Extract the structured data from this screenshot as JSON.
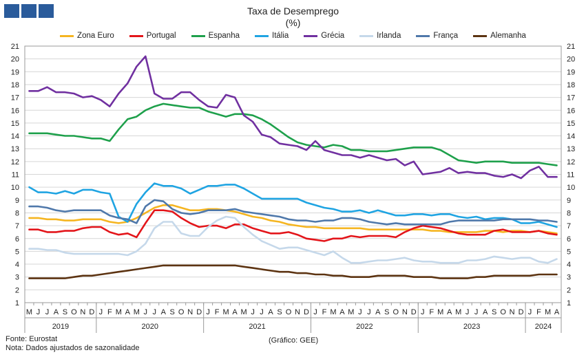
{
  "chart_data": {
    "type": "line",
    "title": "Taxa de Desemprego",
    "subtitle": "(%)",
    "ylim": [
      1,
      21
    ],
    "yticks": [
      1,
      2,
      3,
      4,
      5,
      6,
      7,
      8,
      9,
      10,
      11,
      12,
      13,
      14,
      15,
      16,
      17,
      18,
      19,
      20,
      21
    ],
    "month_labels": [
      "M",
      "J",
      "J",
      "A",
      "S",
      "O",
      "N",
      "D",
      "J",
      "F",
      "M",
      "A",
      "M",
      "J",
      "J",
      "A",
      "S",
      "O",
      "N",
      "D",
      "J",
      "F",
      "M",
      "A",
      "M",
      "J",
      "J",
      "A",
      "S",
      "O",
      "N",
      "D",
      "J",
      "F",
      "M",
      "A",
      "M",
      "J",
      "J",
      "A",
      "S",
      "O",
      "N",
      "D",
      "J",
      "F",
      "M",
      "A",
      "M",
      "J",
      "J",
      "A",
      "S",
      "O",
      "N",
      "D",
      "J",
      "F",
      "M",
      "A"
    ],
    "years": [
      {
        "label": "2019",
        "start": 0,
        "end": 8
      },
      {
        "label": "2020",
        "start": 8,
        "end": 20
      },
      {
        "label": "2021",
        "start": 20,
        "end": 32
      },
      {
        "label": "2022",
        "start": 32,
        "end": 44
      },
      {
        "label": "2023",
        "start": 44,
        "end": 56
      },
      {
        "label": "2024",
        "start": 56,
        "end": 60
      }
    ],
    "legend_position": "top",
    "grid": "horizontal",
    "series": [
      {
        "name": "Zona Euro",
        "color": "#f5b520",
        "values": [
          7.6,
          7.6,
          7.5,
          7.5,
          7.4,
          7.4,
          7.5,
          7.5,
          7.5,
          7.3,
          7.2,
          7.3,
          7.6,
          8.0,
          8.4,
          8.6,
          8.6,
          8.4,
          8.2,
          8.2,
          8.3,
          8.3,
          8.2,
          8.1,
          7.9,
          7.7,
          7.6,
          7.4,
          7.3,
          7.1,
          7.0,
          6.9,
          6.9,
          6.8,
          6.8,
          6.8,
          6.8,
          6.8,
          6.7,
          6.7,
          6.7,
          6.7,
          6.7,
          6.7,
          6.7,
          6.6,
          6.6,
          6.5,
          6.5,
          6.5,
          6.5,
          6.6,
          6.6,
          6.5,
          6.6,
          6.6,
          6.5,
          6.6,
          6.5,
          6.4
        ]
      },
      {
        "name": "Portugal",
        "color": "#e3151a",
        "values": [
          6.7,
          6.7,
          6.5,
          6.5,
          6.6,
          6.6,
          6.8,
          6.9,
          6.9,
          6.5,
          6.3,
          6.4,
          6.1,
          7.2,
          8.2,
          8.2,
          8.1,
          7.6,
          7.2,
          6.9,
          7.0,
          7.0,
          6.8,
          7.1,
          7.1,
          6.8,
          6.6,
          6.4,
          6.4,
          6.5,
          6.3,
          6.0,
          5.9,
          5.8,
          6.0,
          6.0,
          6.2,
          6.1,
          6.2,
          6.2,
          6.2,
          6.1,
          6.5,
          6.8,
          7.0,
          6.9,
          6.8,
          6.6,
          6.4,
          6.3,
          6.3,
          6.3,
          6.6,
          6.7,
          6.5,
          6.5,
          6.5,
          6.6,
          6.4,
          6.3
        ]
      },
      {
        "name": "Espanha",
        "color": "#1ea04b",
        "values": [
          14.2,
          14.2,
          14.2,
          14.1,
          14.0,
          14.0,
          13.9,
          13.8,
          13.8,
          13.6,
          14.5,
          15.3,
          15.5,
          16.0,
          16.3,
          16.5,
          16.4,
          16.3,
          16.2,
          16.2,
          15.9,
          15.7,
          15.5,
          15.7,
          15.7,
          15.6,
          15.3,
          14.9,
          14.4,
          13.9,
          13.5,
          13.3,
          13.2,
          13.1,
          13.3,
          13.2,
          12.9,
          12.9,
          12.8,
          12.8,
          12.8,
          12.9,
          13.0,
          13.1,
          13.1,
          13.1,
          12.9,
          12.5,
          12.1,
          12.0,
          11.9,
          12.0,
          12.0,
          12.0,
          11.9,
          11.9,
          11.9,
          11.9,
          11.8,
          11.7
        ]
      },
      {
        "name": "Itália",
        "color": "#1fa4e2",
        "values": [
          10.0,
          9.6,
          9.6,
          9.5,
          9.7,
          9.5,
          9.8,
          9.8,
          9.6,
          9.5,
          7.7,
          7.3,
          8.7,
          9.6,
          10.3,
          10.1,
          10.1,
          9.9,
          9.5,
          9.8,
          10.1,
          10.1,
          10.2,
          10.2,
          9.9,
          9.5,
          9.1,
          9.1,
          9.1,
          9.1,
          9.1,
          8.8,
          8.6,
          8.4,
          8.3,
          8.1,
          8.1,
          8.2,
          8.0,
          8.2,
          8.0,
          7.8,
          7.8,
          7.9,
          7.9,
          7.8,
          7.9,
          7.9,
          7.7,
          7.6,
          7.7,
          7.5,
          7.6,
          7.6,
          7.5,
          7.2,
          7.2,
          7.3,
          7.1,
          6.9
        ]
      },
      {
        "name": "Grécia",
        "color": "#7030a0",
        "values": [
          17.5,
          17.5,
          17.8,
          17.4,
          17.4,
          17.3,
          17.0,
          17.1,
          16.8,
          16.3,
          17.3,
          18.1,
          19.4,
          20.2,
          17.3,
          16.9,
          16.9,
          17.4,
          17.4,
          16.8,
          16.3,
          16.2,
          17.2,
          17.0,
          15.6,
          15.1,
          14.1,
          13.9,
          13.4,
          13.3,
          13.2,
          12.9,
          13.6,
          12.9,
          12.7,
          12.5,
          12.5,
          12.3,
          12.5,
          12.3,
          12.1,
          12.2,
          11.7,
          12.0,
          11.0,
          11.1,
          11.2,
          11.5,
          11.1,
          11.2,
          11.1,
          11.1,
          10.9,
          10.8,
          11.0,
          10.7,
          11.3,
          11.6,
          10.8,
          10.8
        ]
      },
      {
        "name": "Irlanda",
        "color": "#c5d8ea",
        "values": [
          5.2,
          5.2,
          5.1,
          5.1,
          4.9,
          4.8,
          4.8,
          4.8,
          4.8,
          4.8,
          4.8,
          4.7,
          5.0,
          5.6,
          6.8,
          7.3,
          7.3,
          6.4,
          6.2,
          6.2,
          6.9,
          7.4,
          7.7,
          7.6,
          6.9,
          6.3,
          5.8,
          5.5,
          5.2,
          5.3,
          5.3,
          5.1,
          4.9,
          4.7,
          5.0,
          4.5,
          4.1,
          4.1,
          4.2,
          4.3,
          4.3,
          4.4,
          4.5,
          4.3,
          4.2,
          4.2,
          4.1,
          4.1,
          4.1,
          4.3,
          4.3,
          4.4,
          4.6,
          4.5,
          4.4,
          4.5,
          4.5,
          4.2,
          4.1,
          4.4
        ]
      },
      {
        "name": "França",
        "color": "#4f78aa",
        "values": [
          8.5,
          8.5,
          8.4,
          8.2,
          8.1,
          8.2,
          8.2,
          8.2,
          8.2,
          7.8,
          7.6,
          7.5,
          7.2,
          8.5,
          9.0,
          8.9,
          8.3,
          8.0,
          7.9,
          8.0,
          8.2,
          8.2,
          8.2,
          8.3,
          8.1,
          8.0,
          7.9,
          7.8,
          7.7,
          7.5,
          7.4,
          7.4,
          7.3,
          7.4,
          7.4,
          7.6,
          7.6,
          7.5,
          7.3,
          7.2,
          7.1,
          7.2,
          7.1,
          7.1,
          7.1,
          7.1,
          7.1,
          7.3,
          7.4,
          7.4,
          7.4,
          7.4,
          7.4,
          7.5,
          7.5,
          7.5,
          7.5,
          7.4,
          7.4,
          7.3
        ]
      },
      {
        "name": "Alemanha",
        "color": "#5c3311",
        "values": [
          2.9,
          2.9,
          2.9,
          2.9,
          2.9,
          3.0,
          3.1,
          3.1,
          3.2,
          3.3,
          3.4,
          3.5,
          3.6,
          3.7,
          3.8,
          3.9,
          3.9,
          3.9,
          3.9,
          3.9,
          3.9,
          3.9,
          3.9,
          3.9,
          3.8,
          3.7,
          3.6,
          3.5,
          3.4,
          3.4,
          3.3,
          3.3,
          3.2,
          3.2,
          3.1,
          3.1,
          3.0,
          3.0,
          3.0,
          3.1,
          3.1,
          3.1,
          3.1,
          3.0,
          3.0,
          3.0,
          2.9,
          2.9,
          2.9,
          2.9,
          3.0,
          3.0,
          3.1,
          3.1,
          3.1,
          3.1,
          3.1,
          3.2,
          3.2,
          3.2
        ]
      }
    ]
  },
  "footer": {
    "source": "Fonte: Eurostat",
    "note": "Nota: Dados ajustados de sazonalidade",
    "credit": "(Gráfico: GEE)"
  }
}
